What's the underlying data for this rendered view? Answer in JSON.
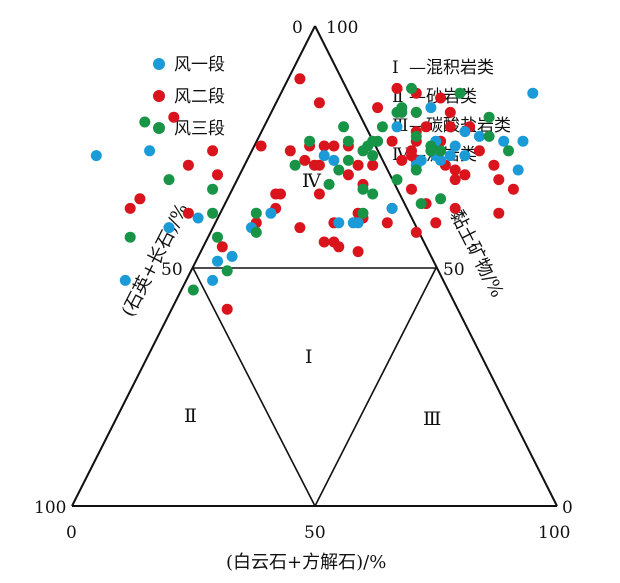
{
  "chart_data": {
    "type": "scatter",
    "subtype": "ternary",
    "title": "",
    "axes": {
      "bottom": {
        "label": "(白云石+方解石)/%",
        "ticks": [
          "0",
          "50",
          "100"
        ],
        "range": [
          0,
          100
        ]
      },
      "left": {
        "label": "(石英+长石)/%",
        "ticks": [
          "100",
          "50",
          "0"
        ]
      },
      "right": {
        "label": "黏土矿物/%",
        "ticks": [
          "100",
          "50",
          "0"
        ]
      }
    },
    "legend": {
      "placement": "top-left",
      "entries": [
        {
          "name": "风一段",
          "color": "#1a9ad6"
        },
        {
          "name": "风二段",
          "color": "#d9141d"
        },
        {
          "name": "风三段",
          "color": "#189447"
        }
      ]
    },
    "classes": [
      {
        "numeral": "Ⅰ",
        "text": "—混积岩类"
      },
      {
        "numeral": "Ⅱ",
        "text": "—砂岩类"
      },
      {
        "numeral": "Ⅲ",
        "text": "—碳酸盐岩类"
      },
      {
        "numeral": "Ⅳ",
        "text": "—泥岩类"
      }
    ],
    "regions": {
      "I": "Ⅰ",
      "II": "Ⅱ",
      "III": "Ⅲ",
      "IV": "Ⅳ"
    },
    "series": [
      {
        "name": "风一段",
        "color": "#1a9ad6",
        "points": [
          [
            5,
            73
          ],
          [
            54,
            72
          ],
          [
            79,
            75
          ],
          [
            76,
            72
          ],
          [
            89,
            76
          ],
          [
            84,
            77
          ],
          [
            95,
            86
          ],
          [
            72,
            72
          ],
          [
            20,
            58
          ],
          [
            52,
            73
          ],
          [
            67,
            79
          ],
          [
            75,
            73
          ],
          [
            37,
            58
          ],
          [
            29,
            47
          ],
          [
            66,
            62
          ],
          [
            58,
            59
          ],
          [
            16,
            74
          ],
          [
            41,
            61
          ],
          [
            92,
            70
          ],
          [
            11,
            47
          ],
          [
            74,
            83
          ],
          [
            78,
            73
          ],
          [
            55,
            59
          ],
          [
            30,
            51
          ],
          [
            33,
            52
          ],
          [
            59,
            59
          ],
          [
            75,
            76
          ],
          [
            71,
            71
          ],
          [
            93,
            76
          ],
          [
            81,
            73
          ],
          [
            26,
            60
          ],
          [
            81,
            78
          ]
        ]
      },
      {
        "name": "风二段",
        "color": "#d9141d",
        "points": [
          [
            38,
            59
          ],
          [
            60,
            60
          ],
          [
            32,
            41
          ],
          [
            43,
            65
          ],
          [
            24,
            71
          ],
          [
            54,
            75
          ],
          [
            52,
            55
          ],
          [
            68,
            72
          ],
          [
            59,
            61
          ],
          [
            51,
            65
          ],
          [
            59,
            53
          ],
          [
            66,
            62
          ],
          [
            88,
            61
          ],
          [
            91,
            66
          ],
          [
            87,
            71
          ],
          [
            14,
            64
          ],
          [
            79,
            62
          ],
          [
            31,
            54
          ],
          [
            30,
            69
          ],
          [
            79,
            70
          ],
          [
            78,
            82
          ],
          [
            42,
            65
          ],
          [
            70,
            74
          ],
          [
            50,
            71
          ],
          [
            59,
            71
          ],
          [
            62,
            71
          ],
          [
            73,
            79
          ],
          [
            48,
            72
          ],
          [
            51,
            84
          ],
          [
            73,
            63
          ],
          [
            71,
            86
          ],
          [
            88,
            68
          ],
          [
            77,
            71
          ],
          [
            57,
            75
          ],
          [
            67,
            87
          ],
          [
            79,
            68
          ],
          [
            51,
            71
          ],
          [
            66,
            76
          ],
          [
            71,
            76
          ],
          [
            49,
            75
          ],
          [
            47,
            58
          ],
          [
            71,
            78
          ],
          [
            39,
            75
          ],
          [
            70,
            66
          ],
          [
            63,
            83
          ],
          [
            21,
            81
          ],
          [
            54,
            55
          ],
          [
            81,
            69
          ],
          [
            76,
            85
          ],
          [
            76,
            76
          ],
          [
            42,
            62
          ],
          [
            60,
            67
          ],
          [
            52,
            75
          ],
          [
            71,
            57
          ],
          [
            71,
            82
          ],
          [
            55,
            54
          ],
          [
            71,
            72
          ],
          [
            78,
            79
          ],
          [
            47,
            89
          ],
          [
            84,
            74
          ],
          [
            45,
            74
          ],
          [
            82,
            79
          ],
          [
            12,
            62
          ],
          [
            65,
            59
          ],
          [
            29,
            74
          ],
          [
            75,
            59
          ],
          [
            70,
            73
          ],
          [
            54,
            59
          ],
          [
            57,
            69
          ],
          [
            24,
            61
          ]
        ]
      },
      {
        "name": "风三段",
        "color": "#189447",
        "points": [
          [
            71,
            70
          ],
          [
            49,
            76
          ],
          [
            71,
            77
          ],
          [
            76,
            74
          ],
          [
            67,
            82
          ],
          [
            80,
            86
          ],
          [
            53,
            67
          ],
          [
            71,
            82
          ],
          [
            38,
            61
          ],
          [
            62,
            73
          ],
          [
            86,
            81
          ],
          [
            67,
            68
          ],
          [
            15,
            80
          ],
          [
            55,
            70
          ],
          [
            61,
            75
          ],
          [
            72,
            63
          ],
          [
            46,
            71
          ],
          [
            62,
            76
          ],
          [
            60,
            61
          ],
          [
            32,
            49
          ],
          [
            30,
            56
          ],
          [
            57,
            76
          ],
          [
            90,
            74
          ],
          [
            20,
            68
          ],
          [
            74,
            75
          ],
          [
            56,
            79
          ],
          [
            29,
            66
          ],
          [
            60,
            74
          ],
          [
            63,
            76
          ],
          [
            12,
            56
          ],
          [
            68,
            83
          ],
          [
            57,
            72
          ],
          [
            68,
            82
          ],
          [
            60,
            66
          ],
          [
            86,
            77
          ],
          [
            70,
            87
          ],
          [
            64,
            79
          ],
          [
            25,
            45
          ],
          [
            76,
            64
          ],
          [
            74,
            74
          ],
          [
            29,
            61
          ],
          [
            38,
            57
          ],
          [
            62,
            65
          ]
        ]
      }
    ]
  }
}
